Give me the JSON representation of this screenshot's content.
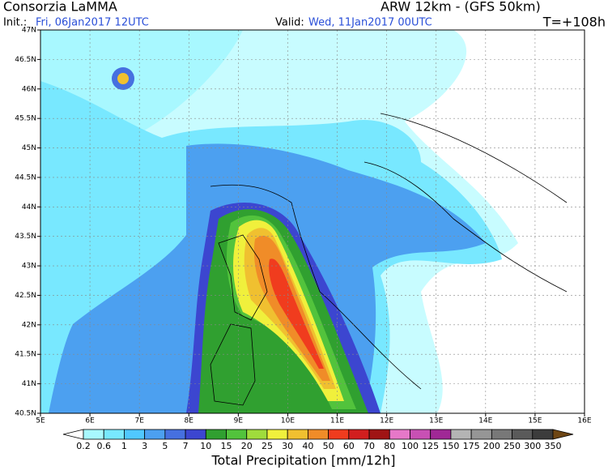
{
  "header": {
    "org": "Consorzia LaMMA",
    "model": "ARW 12km - (GFS 50km)",
    "init_label": "Init.:",
    "init_date": "Fri, 06Jan2017 12UTC",
    "valid_label": "Valid:",
    "valid_date": "Wed, 11Jan2017 00UTC",
    "lead": "T=+108h"
  },
  "map": {
    "lon_labels": [
      "5E",
      "6E",
      "7E",
      "8E",
      "9E",
      "10E",
      "11E",
      "12E",
      "13E",
      "14E",
      "15E",
      "16E"
    ],
    "lat_labels": [
      "47N",
      "46.5N",
      "46N",
      "45.5N",
      "45N",
      "44.5N",
      "44N",
      "43.5N",
      "43N",
      "42.5N",
      "42N",
      "41.5N",
      "41N",
      "40.5N"
    ]
  },
  "colorbar": {
    "title": "Total Precipitation [mm/12h]",
    "labels": [
      "0.2",
      "0.6",
      "1",
      "3",
      "5",
      "7",
      "10",
      "15",
      "20",
      "25",
      "30",
      "40",
      "50",
      "60",
      "70",
      "80",
      "100",
      "125",
      "150",
      "175",
      "200",
      "250",
      "300",
      "350"
    ],
    "colors": [
      "#ffffff",
      "#a8f8ff",
      "#78e8ff",
      "#50c8ff",
      "#4ca0f0",
      "#4670e0",
      "#3c46d0",
      "#30a030",
      "#52c33c",
      "#a0dc3c",
      "#f0f03c",
      "#f0c030",
      "#f08c28",
      "#f03c1e",
      "#d21e1e",
      "#a01414",
      "#e678c8",
      "#c850b4",
      "#a02896",
      "#b4b4b4",
      "#969696",
      "#787878",
      "#5a5a5a",
      "#3c3c3c",
      "#8c6e3c",
      "#6e4614"
    ]
  }
}
